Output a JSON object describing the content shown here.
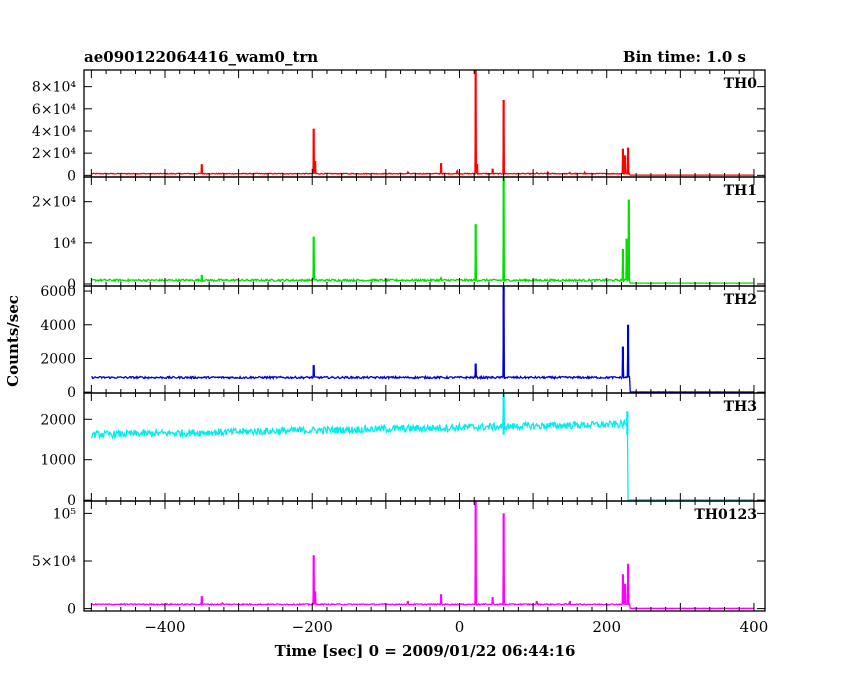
{
  "title_left": "ae090122064416_wam0_trn",
  "title_right": "Bin time: 1.0 s",
  "ylabel": "Counts/sec",
  "xlabel": "Time [sec] 0 = 2009/01/22 06:44:16",
  "chart_data": {
    "type": "line",
    "xlim": [
      -510,
      415
    ],
    "x_ticks": [
      -400,
      -200,
      0,
      200,
      400
    ],
    "panels": [
      {
        "name": "TH0",
        "color": "#ff0000",
        "ylim": [
          -1500,
          95000
        ],
        "ytick_labels": [
          "0",
          "2×10⁴",
          "4×10⁴",
          "6×10⁴",
          "8×10⁴"
        ],
        "ytick_values": [
          0,
          20000,
          40000,
          60000,
          80000
        ],
        "baseline": 1500,
        "noise": 400,
        "drop_x": 232,
        "after_level": 200,
        "spikes": [
          [
            -350,
            10000
          ],
          [
            -322,
            1800
          ],
          [
            -198,
            42000
          ],
          [
            -196,
            13000
          ],
          [
            -150,
            1200
          ],
          [
            -70,
            3000
          ],
          [
            -25,
            11000
          ],
          [
            -3,
            4000
          ],
          [
            22,
            95000
          ],
          [
            24,
            10000
          ],
          [
            45,
            6000
          ],
          [
            60,
            68000
          ],
          [
            105,
            2500
          ],
          [
            120,
            3000
          ],
          [
            150,
            2500
          ],
          [
            170,
            2800
          ],
          [
            200,
            2000
          ],
          [
            222,
            24000
          ],
          [
            225,
            18000
          ],
          [
            229,
            25000
          ]
        ]
      },
      {
        "name": "TH1",
        "color": "#00e000",
        "ylim": [
          -500,
          26000
        ],
        "ytick_labels": [
          "0",
          "10⁴",
          "2×10⁴"
        ],
        "ytick_values": [
          0,
          10000,
          20000
        ],
        "baseline": 900,
        "noise": 250,
        "drop_x": 232,
        "after_level": 200,
        "spikes": [
          [
            -350,
            2200
          ],
          [
            -198,
            11500
          ],
          [
            -25,
            1500
          ],
          [
            22,
            14500
          ],
          [
            60,
            26000
          ],
          [
            222,
            8500
          ],
          [
            227,
            11000
          ],
          [
            230,
            20500
          ]
        ]
      },
      {
        "name": "TH2",
        "color": "#0000dd",
        "ylim": [
          -50,
          6300
        ],
        "ytick_labels": [
          "0",
          "2000",
          "4000",
          "6000"
        ],
        "ytick_values": [
          0,
          2000,
          4000,
          6000
        ],
        "baseline": 870,
        "noise": 60,
        "drop_x": 232,
        "after_level": 10,
        "spikes": [
          [
            -198,
            1600
          ],
          [
            22,
            1700
          ],
          [
            60,
            6300
          ],
          [
            222,
            2700
          ],
          [
            229,
            4000
          ]
        ]
      },
      {
        "name": "TH3",
        "color": "#00eeee",
        "ylim": [
          -20,
          2650
        ],
        "ytick_labels": [
          "0",
          "1000",
          "2000"
        ],
        "ytick_values": [
          0,
          1000,
          2000
        ],
        "baseline_start": 1620,
        "baseline_end": 1880,
        "noise": 90,
        "drop_x": 229,
        "after_level": 10,
        "spikes": [
          [
            60,
            2650
          ],
          [
            228,
            2200
          ]
        ]
      },
      {
        "name": "TH0123",
        "color": "#ff00ff",
        "ylim": [
          -2500,
          113000
        ],
        "ytick_labels": [
          "0",
          "5×10⁴",
          "10⁵"
        ],
        "ytick_values": [
          0,
          50000,
          100000
        ],
        "baseline": 4500,
        "noise": 600,
        "drop_x": 232,
        "after_level": 300,
        "spikes": [
          [
            -350,
            13000
          ],
          [
            -322,
            6000
          ],
          [
            -198,
            56000
          ],
          [
            -196,
            18000
          ],
          [
            -70,
            8000
          ],
          [
            -25,
            15000
          ],
          [
            22,
            113000
          ],
          [
            45,
            12000
          ],
          [
            60,
            100000
          ],
          [
            105,
            8000
          ],
          [
            150,
            8000
          ],
          [
            222,
            36000
          ],
          [
            225,
            26000
          ],
          [
            229,
            47000
          ]
        ]
      }
    ]
  }
}
